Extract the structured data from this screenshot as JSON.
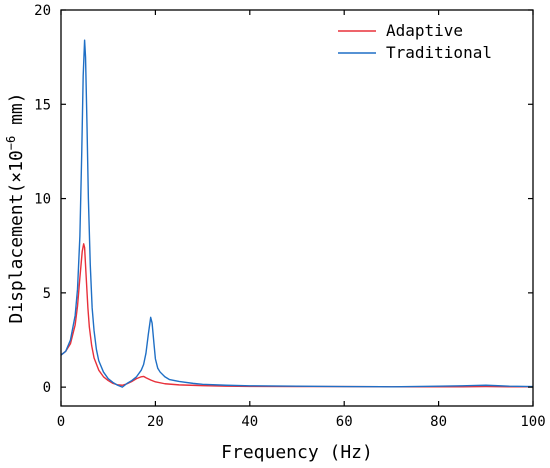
{
  "chart_data": {
    "type": "line",
    "xlabel": "Frequency (Hz)",
    "ylabel_prefix": "Displacement(×10",
    "ylabel_exponent": "−6",
    "ylabel_suffix": " mm)",
    "xlim": [
      0,
      100
    ],
    "ylim": [
      -1,
      20
    ],
    "xticks": [
      0,
      20,
      40,
      60,
      80,
      100
    ],
    "yticks": [
      0,
      5,
      10,
      15,
      20
    ],
    "grid": false,
    "legend_position": "top-right",
    "series": [
      {
        "name": "Adaptive",
        "color": "#e8303a",
        "x": [
          0,
          1,
          2,
          3,
          3.5,
          4,
          4.5,
          4.8,
          5,
          5.3,
          5.7,
          6,
          6.5,
          7,
          8,
          9,
          10,
          11,
          12,
          13,
          14,
          15,
          16,
          17,
          17.5,
          18,
          19,
          20,
          22,
          25,
          30,
          35,
          40,
          50,
          60,
          70,
          80,
          85,
          90,
          95,
          100
        ],
        "y": [
          1.7,
          1.9,
          2.3,
          3.3,
          4.3,
          5.8,
          7.2,
          7.6,
          7.4,
          6.0,
          4.2,
          3.2,
          2.2,
          1.55,
          0.9,
          0.55,
          0.35,
          0.2,
          0.12,
          0.1,
          0.18,
          0.3,
          0.45,
          0.55,
          0.57,
          0.5,
          0.38,
          0.28,
          0.18,
          0.12,
          0.08,
          0.05,
          0.04,
          0.03,
          0.03,
          0.02,
          0.02,
          0.02,
          0.03,
          0.02,
          0.02
        ]
      },
      {
        "name": "Traditional",
        "color": "#1f6fc5",
        "x": [
          0,
          1,
          2,
          3,
          3.5,
          4,
          4.4,
          4.7,
          5,
          5.2,
          5.5,
          5.8,
          6.2,
          6.6,
          7,
          7.5,
          8,
          9,
          10,
          11,
          12,
          13,
          14,
          15,
          16,
          17,
          17.5,
          18,
          18.5,
          19,
          19.3,
          19.7,
          20,
          20.5,
          21,
          22,
          23,
          25,
          28,
          30,
          35,
          40,
          50,
          60,
          70,
          80,
          85,
          88,
          90,
          92,
          95,
          100
        ],
        "y": [
          1.7,
          1.9,
          2.5,
          3.8,
          5.2,
          8.0,
          12.5,
          16.5,
          18.4,
          17.5,
          14.0,
          10.0,
          6.5,
          4.2,
          3.0,
          2.0,
          1.4,
          0.8,
          0.45,
          0.25,
          0.1,
          0.0,
          0.2,
          0.35,
          0.55,
          0.9,
          1.2,
          1.8,
          2.8,
          3.7,
          3.4,
          2.3,
          1.5,
          1.0,
          0.8,
          0.55,
          0.4,
          0.3,
          0.2,
          0.15,
          0.1,
          0.07,
          0.05,
          0.03,
          0.02,
          0.05,
          0.07,
          0.09,
          0.1,
          0.08,
          0.05,
          0.03
        ]
      }
    ]
  }
}
